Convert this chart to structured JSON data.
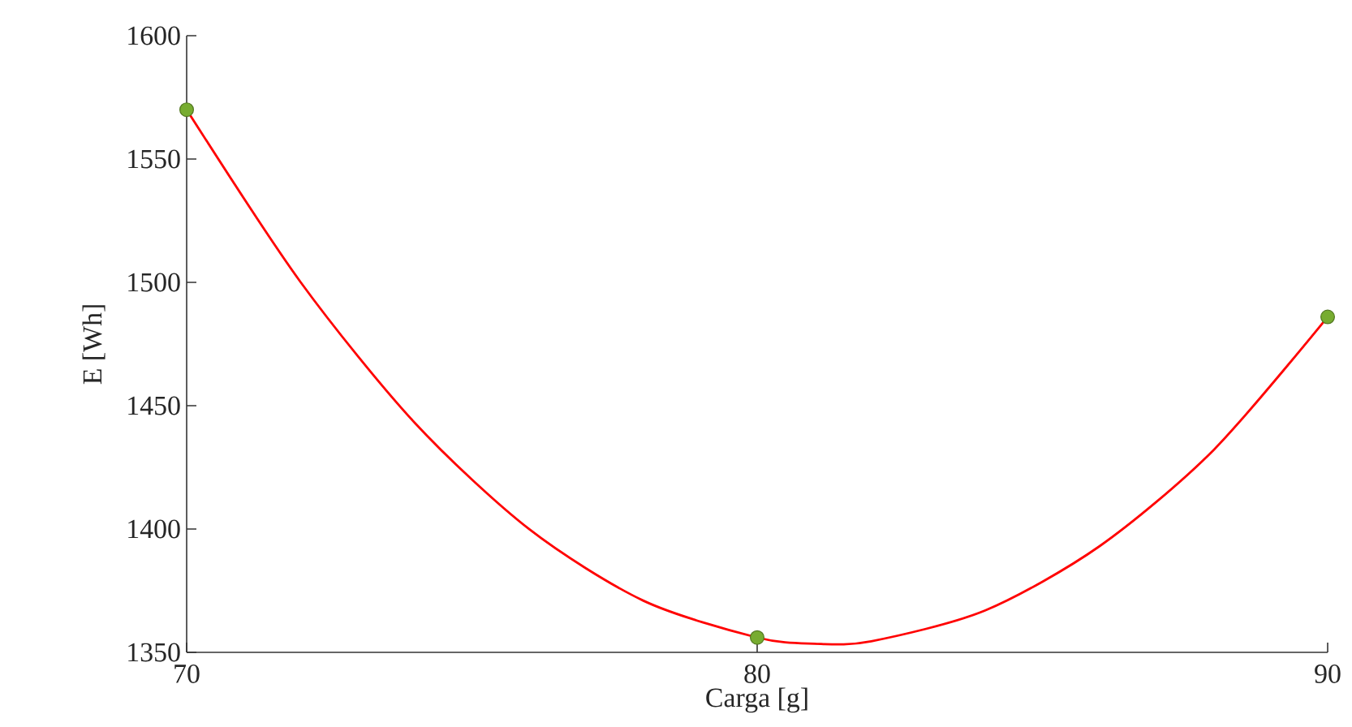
{
  "chart_data": {
    "type": "scatter",
    "xlabel": "Carga [g]",
    "ylabel": "E [Wh]",
    "xlim": [
      70,
      90
    ],
    "xticks": [
      70,
      80,
      90
    ],
    "ylim": [
      1350,
      1600
    ],
    "yticks": [
      1350,
      1400,
      1450,
      1500,
      1550,
      1600
    ],
    "grid": false,
    "series": [
      {
        "type": "line",
        "color": "#ff0000",
        "marker": "none",
        "line_style": "solid",
        "x": [
          70,
          72,
          74,
          76,
          78,
          80,
          81,
          82,
          84,
          86,
          88,
          90
        ],
        "values": [
          1570,
          1500,
          1443,
          1400,
          1371,
          1356,
          1353.5,
          1354.5,
          1367,
          1393,
          1432,
          1486
        ]
      },
      {
        "color": "#77ac30",
        "marker": "circle",
        "x": [
          70,
          80,
          90
        ],
        "values": [
          1570,
          1356,
          1486
        ]
      }
    ]
  }
}
